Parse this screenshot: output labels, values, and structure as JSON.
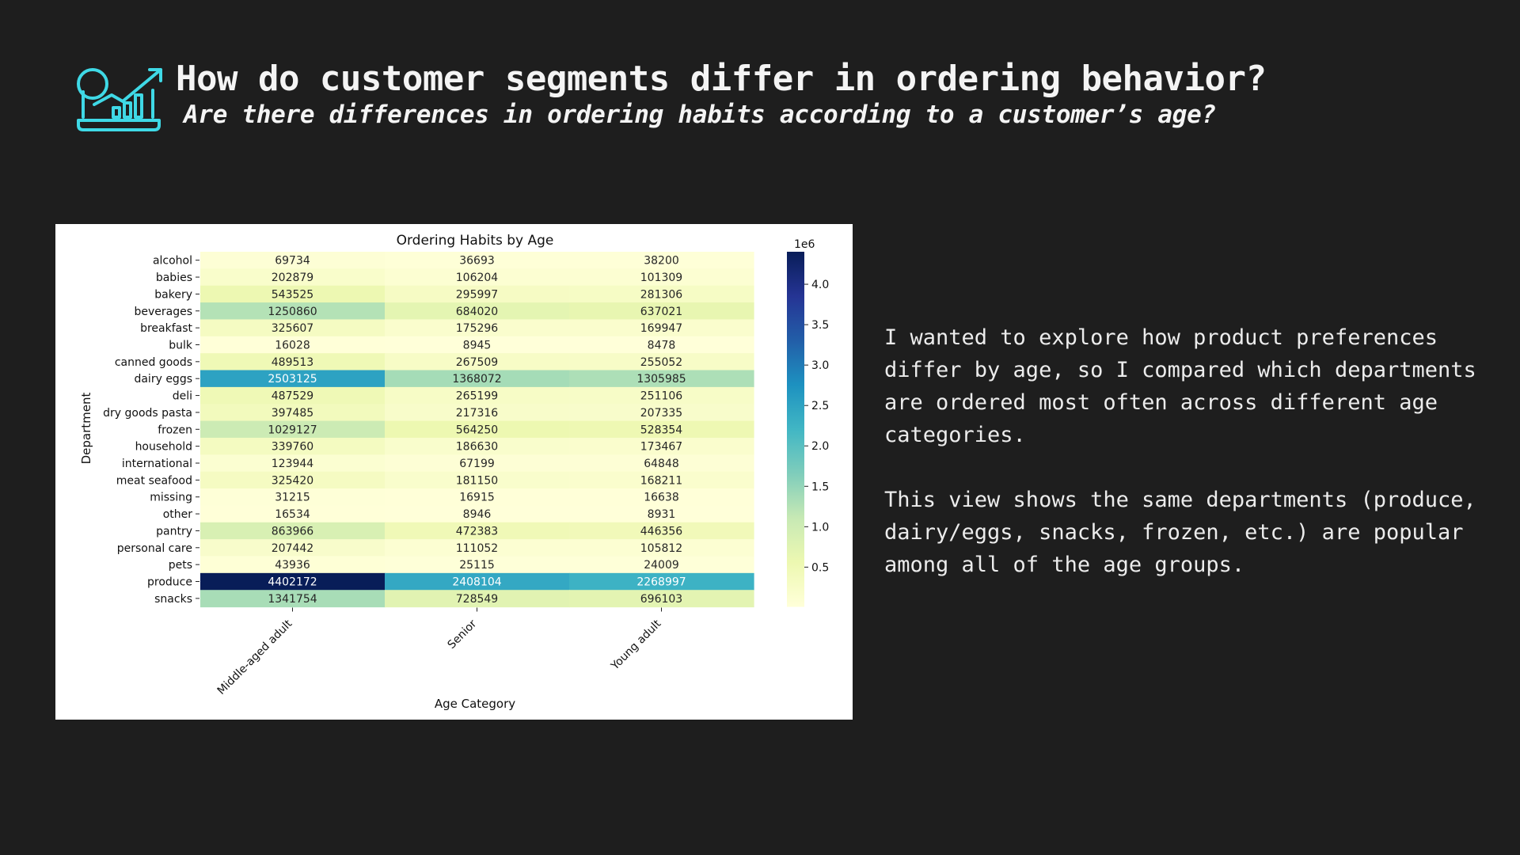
{
  "slide": {
    "title": "How do customer segments differ in ordering behavior?",
    "subtitle": "Are there differences in ordering habits according to a customer’s age?",
    "icon": "analytics-laptop-icon",
    "accent_color": "#3fd9e6",
    "body_paragraphs": [
      "I wanted to explore how product preferences differ by age, so I compared which departments are ordered most often across different age categories.",
      "This view shows the same departments (produce, dairy/eggs, snacks, frozen, etc.) are popular among all of the age groups."
    ]
  },
  "chart_data": {
    "type": "heatmap",
    "title": "Ordering Habits by Age",
    "xlabel": "Age Category",
    "ylabel": "Department",
    "colormap": "YlGnBu",
    "x_categories": [
      "Middle-aged adult",
      "Senior",
      "Young adult"
    ],
    "y_categories": [
      "alcohol",
      "babies",
      "bakery",
      "beverages",
      "breakfast",
      "bulk",
      "canned goods",
      "dairy eggs",
      "deli",
      "dry goods pasta",
      "frozen",
      "household",
      "international",
      "meat seafood",
      "missing",
      "other",
      "pantry",
      "personal care",
      "pets",
      "produce",
      "snacks"
    ],
    "values": [
      [
        69734,
        36693,
        38200
      ],
      [
        202879,
        106204,
        101309
      ],
      [
        543525,
        295997,
        281306
      ],
      [
        1250860,
        684020,
        637021
      ],
      [
        325607,
        175296,
        169947
      ],
      [
        16028,
        8945,
        8478
      ],
      [
        489513,
        267509,
        255052
      ],
      [
        2503125,
        1368072,
        1305985
      ],
      [
        487529,
        265199,
        251106
      ],
      [
        397485,
        217316,
        207335
      ],
      [
        1029127,
        564250,
        528354
      ],
      [
        339760,
        186630,
        173467
      ],
      [
        123944,
        67199,
        64848
      ],
      [
        325420,
        181150,
        168211
      ],
      [
        31215,
        16915,
        16638
      ],
      [
        16534,
        8946,
        8931
      ],
      [
        863966,
        472383,
        446356
      ],
      [
        207442,
        111052,
        105812
      ],
      [
        43936,
        25115,
        24009
      ],
      [
        4402172,
        2408104,
        2268997
      ],
      [
        1341754,
        728549,
        696103
      ]
    ],
    "colorbar": {
      "offset_label": "1e6",
      "ticks": [
        0.5,
        1.0,
        1.5,
        2.0,
        2.5,
        3.0,
        3.5,
        4.0
      ],
      "tick_labels": [
        "0.5",
        "1.0",
        "1.5",
        "2.0",
        "2.5",
        "3.0",
        "3.5",
        "4.0"
      ],
      "range": [
        8478,
        4402172
      ],
      "scale": 1000000
    }
  }
}
